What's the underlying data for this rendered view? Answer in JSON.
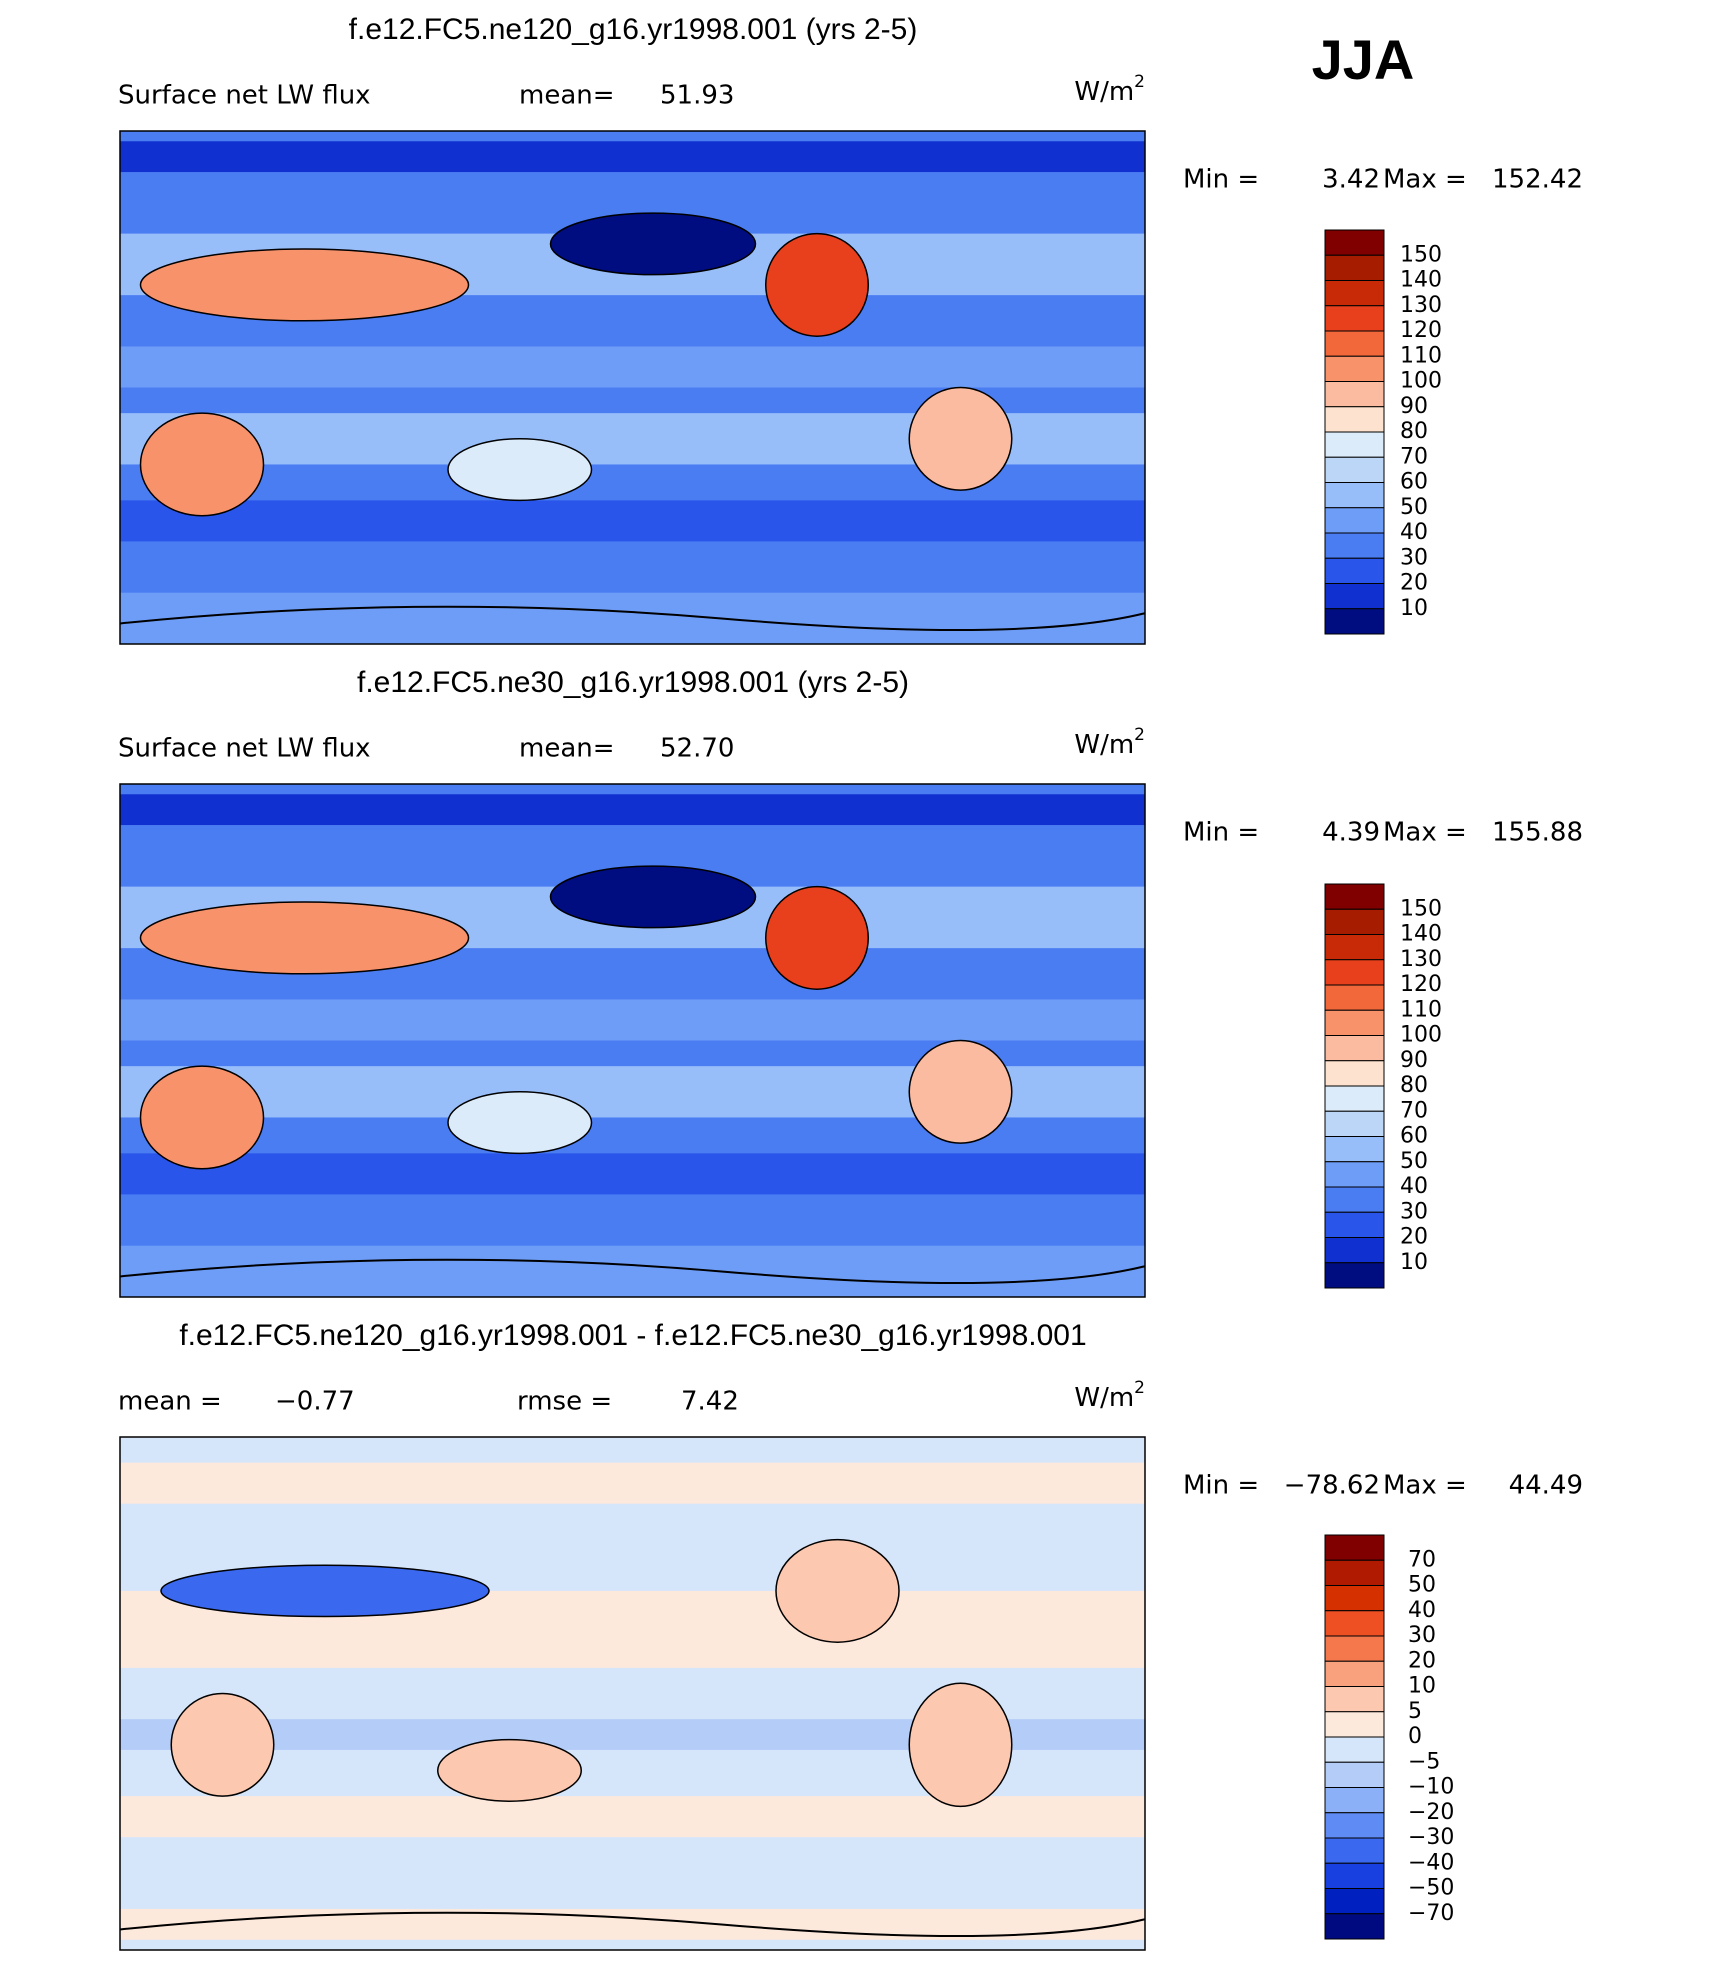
{
  "figure": {
    "season": "JJA",
    "panels": [
      {
        "title": "f.e12.FC5.ne120_g16.yr1998.001 (yrs 2-5)",
        "variable": "Surface net LW flux",
        "stats": [
          {
            "label": "mean=",
            "value": "51.93"
          }
        ],
        "units": "W/m",
        "units_sup": "2",
        "min_label": "Min =",
        "min": "3.42",
        "max_label": "Max =",
        "max": "152.42",
        "colorbar": {
          "colors": [
            "#800000",
            "#a51c00",
            "#c82a08",
            "#e8401c",
            "#f2683a",
            "#f7926b",
            "#fbbba0",
            "#fde2d0",
            "#dcebfa",
            "#bcd6f7",
            "#98befa",
            "#6e9df7",
            "#4a7cf2",
            "#2a55ea",
            "#1030d0",
            "#000d80"
          ],
          "labels": [
            "150",
            "140",
            "130",
            "120",
            "110",
            "100",
            "90",
            "80",
            "70",
            "60",
            "50",
            "40",
            "30",
            "20",
            "10"
          ]
        }
      },
      {
        "title": "f.e12.FC5.ne30_g16.yr1998.001 (yrs 2-5)",
        "variable": "Surface net LW flux",
        "stats": [
          {
            "label": "mean=",
            "value": "52.70"
          }
        ],
        "units": "W/m",
        "units_sup": "2",
        "min_label": "Min =",
        "min": "4.39",
        "max_label": "Max =",
        "max": "155.88",
        "colorbar": {
          "colors": [
            "#800000",
            "#a51c00",
            "#c82a08",
            "#e8401c",
            "#f2683a",
            "#f7926b",
            "#fbbba0",
            "#fde2d0",
            "#dcebfa",
            "#bcd6f7",
            "#98befa",
            "#6e9df7",
            "#4a7cf2",
            "#2a55ea",
            "#1030d0",
            "#000d80"
          ],
          "labels": [
            "150",
            "140",
            "130",
            "120",
            "110",
            "100",
            "90",
            "80",
            "70",
            "60",
            "50",
            "40",
            "30",
            "20",
            "10"
          ]
        }
      },
      {
        "title": "f.e12.FC5.ne120_g16.yr1998.001 - f.e12.FC5.ne30_g16.yr1998.001",
        "stats": [
          {
            "label": "mean =",
            "value": "−0.77"
          },
          {
            "label": "rmse =",
            "value": "7.42"
          }
        ],
        "units": "W/m",
        "units_sup": "2",
        "min_label": "Min =",
        "min": "−78.62",
        "max_label": "Max =",
        "max": "44.49",
        "colorbar": {
          "colors": [
            "#800000",
            "#b01a00",
            "#d43000",
            "#ee5024",
            "#f5784c",
            "#f9a07d",
            "#fcc9b0",
            "#fde8dc",
            "#d6e6fa",
            "#b4ccf8",
            "#8cb0f8",
            "#5f8cf4",
            "#3a68ee",
            "#1840e0",
            "#0020c0",
            "#000a80"
          ],
          "labels": [
            "70",
            "50",
            "40",
            "30",
            "20",
            "10",
            "5",
            "0",
            "−5",
            "−10",
            "−20",
            "−30",
            "−40",
            "−50",
            "−70"
          ]
        }
      }
    ]
  }
}
